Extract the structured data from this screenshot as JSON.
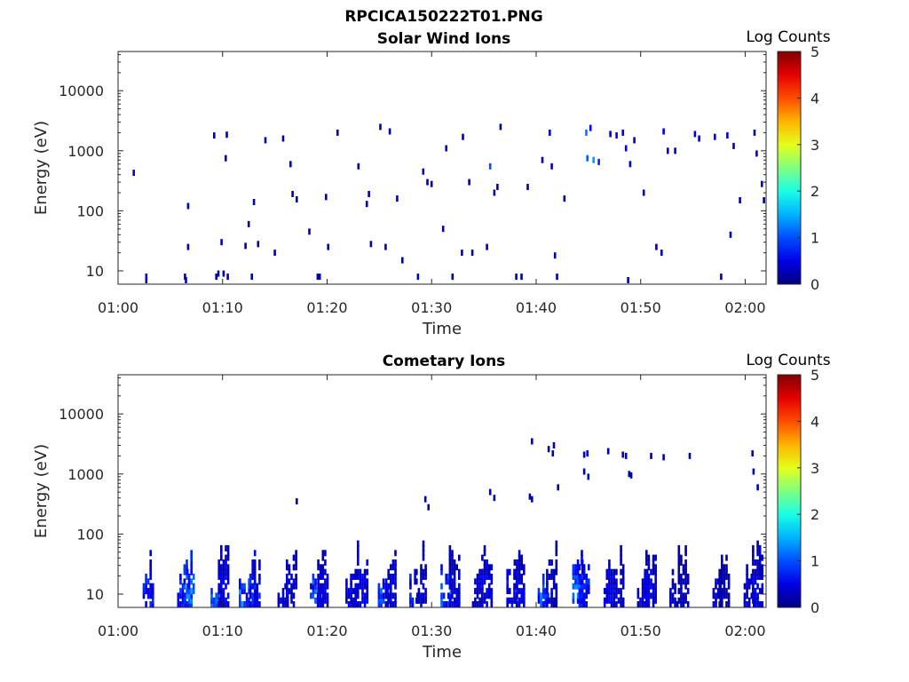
{
  "figure_title": "RPCICA150222T01.PNG",
  "chart_data": [
    {
      "type": "heatmap",
      "title": "Solar Wind Ions",
      "xlabel": "Time",
      "ylabel": "Energy (eV)",
      "x_ticks": [
        "01:00",
        "01:10",
        "01:20",
        "01:30",
        "01:40",
        "01:50",
        "02:00"
      ],
      "x_tick_minutes": [
        0,
        10,
        20,
        30,
        40,
        50,
        60
      ],
      "xlim_minutes": [
        0,
        62
      ],
      "y_scale": "log",
      "ylim": [
        6,
        45000
      ],
      "y_ticks": [
        "10",
        "100",
        "1000",
        "10000"
      ],
      "y_tick_values": [
        10,
        100,
        1000,
        10000
      ],
      "colorbar": {
        "label": "Log Counts",
        "range": [
          0,
          5
        ],
        "ticks": [
          "0",
          "1",
          "2",
          "3",
          "4",
          "5"
        ],
        "colormap": "jet"
      },
      "cells": [
        [
          1.5,
          430,
          0.5
        ],
        [
          2.7,
          8,
          0.3
        ],
        [
          2.7,
          7,
          0.3
        ],
        [
          6.4,
          8,
          0.3
        ],
        [
          6.5,
          7,
          0.3
        ],
        [
          6.7,
          25,
          0.2
        ],
        [
          6.7,
          120,
          0.3
        ],
        [
          9.2,
          1800,
          0.2
        ],
        [
          9.4,
          8,
          0.2
        ],
        [
          9.6,
          9,
          0.2
        ],
        [
          9.9,
          30,
          0.3
        ],
        [
          10.1,
          9,
          0.2
        ],
        [
          10.4,
          1850,
          0.2
        ],
        [
          10.5,
          8,
          0.2
        ],
        [
          10.3,
          750,
          0.2
        ],
        [
          12.2,
          26,
          0.2
        ],
        [
          12.5,
          60,
          0.2
        ],
        [
          12.8,
          8,
          0.2
        ],
        [
          13.0,
          140,
          0.3
        ],
        [
          13.4,
          28,
          0.2
        ],
        [
          14.1,
          1500,
          0.2
        ],
        [
          15.0,
          20,
          0.2
        ],
        [
          15.8,
          1600,
          0.2
        ],
        [
          16.5,
          600,
          0.2
        ],
        [
          16.7,
          190,
          0.2
        ],
        [
          17.1,
          155,
          0.2
        ],
        [
          18.3,
          45,
          0.2
        ],
        [
          19.1,
          8,
          0.2
        ],
        [
          19.3,
          8,
          0.2
        ],
        [
          19.9,
          170,
          0.2
        ],
        [
          20.1,
          25,
          0.2
        ],
        [
          21.0,
          2000,
          0.2
        ],
        [
          23.0,
          550,
          0.2
        ],
        [
          23.8,
          130,
          0.2
        ],
        [
          24.0,
          190,
          0.2
        ],
        [
          24.2,
          28,
          0.2
        ],
        [
          25.1,
          2500,
          0.2
        ],
        [
          25.6,
          25,
          0.2
        ],
        [
          26.0,
          2100,
          0.2
        ],
        [
          26.7,
          160,
          0.2
        ],
        [
          27.2,
          15,
          0.2
        ],
        [
          28.7,
          8,
          0.2
        ],
        [
          29.2,
          450,
          0.2
        ],
        [
          29.6,
          300,
          0.2
        ],
        [
          30.0,
          280,
          0.2
        ],
        [
          31.1,
          50,
          0.2
        ],
        [
          31.4,
          1100,
          0.2
        ],
        [
          32.0,
          8,
          0.2
        ],
        [
          32.9,
          20,
          0.2
        ],
        [
          33.0,
          1700,
          0.2
        ],
        [
          33.6,
          300,
          0.2
        ],
        [
          33.9,
          20,
          0.2
        ],
        [
          35.3,
          25,
          0.2
        ],
        [
          35.6,
          550,
          1.0
        ],
        [
          36.0,
          200,
          0.2
        ],
        [
          36.3,
          250,
          0.2
        ],
        [
          36.6,
          2500,
          0.2
        ],
        [
          38.1,
          8,
          0.2
        ],
        [
          38.6,
          8,
          0.2
        ],
        [
          39.2,
          250,
          0.2
        ],
        [
          40.6,
          700,
          0.2
        ],
        [
          41.3,
          2000,
          0.3
        ],
        [
          41.5,
          550,
          0.4
        ],
        [
          41.8,
          18,
          0.2
        ],
        [
          42.0,
          8,
          0.2
        ],
        [
          42.7,
          160,
          0.2
        ],
        [
          44.8,
          2000,
          1.2
        ],
        [
          44.9,
          750,
          1.1
        ],
        [
          45.2,
          2400,
          0.6
        ],
        [
          45.5,
          700,
          1.4
        ],
        [
          46.0,
          650,
          0.8
        ],
        [
          47.1,
          1900,
          0.4
        ],
        [
          47.7,
          1800,
          0.6
        ],
        [
          48.3,
          2000,
          0.5
        ],
        [
          48.6,
          1100,
          0.5
        ],
        [
          48.8,
          7,
          0.2
        ],
        [
          49.0,
          600,
          0.4
        ],
        [
          49.4,
          1500,
          0.3
        ],
        [
          50.3,
          200,
          0.2
        ],
        [
          51.5,
          25,
          0.2
        ],
        [
          52.0,
          20,
          0.2
        ],
        [
          52.2,
          2100,
          0.5
        ],
        [
          52.6,
          1000,
          0.3
        ],
        [
          53.3,
          1000,
          0.2
        ],
        [
          55.2,
          1900,
          0.5
        ],
        [
          55.6,
          1600,
          0.4
        ],
        [
          57.1,
          1700,
          0.3
        ],
        [
          57.7,
          8,
          0.2
        ],
        [
          58.3,
          1800,
          0.4
        ],
        [
          58.6,
          40,
          0.2
        ],
        [
          58.9,
          1200,
          0.3
        ],
        [
          59.5,
          150,
          0.2
        ],
        [
          60.9,
          2000,
          0.4
        ],
        [
          61.1,
          900,
          0.3
        ],
        [
          61.6,
          280,
          0.2
        ],
        [
          61.8,
          150,
          0.2
        ]
      ]
    },
    {
      "type": "heatmap",
      "title": "Cometary Ions",
      "xlabel": "Time",
      "ylabel": "Energy (eV)",
      "x_ticks": [
        "01:00",
        "01:10",
        "01:20",
        "01:30",
        "01:40",
        "01:50",
        "02:00"
      ],
      "x_tick_minutes": [
        0,
        10,
        20,
        30,
        40,
        50,
        60
      ],
      "xlim_minutes": [
        0,
        62
      ],
      "y_scale": "log",
      "ylim": [
        6,
        45000
      ],
      "y_ticks": [
        "10",
        "100",
        "1000",
        "10000"
      ],
      "y_tick_values": [
        10,
        100,
        1000,
        10000
      ],
      "colorbar": {
        "label": "Log Counts",
        "range": [
          0,
          5
        ],
        "ticks": [
          "0",
          "1",
          "2",
          "3",
          "4",
          "5"
        ],
        "colormap": "jet"
      },
      "bursts": [
        [
          2.9,
          22,
          0.9
        ],
        [
          6.2,
          15,
          1.0
        ],
        [
          6.8,
          30,
          1.4
        ],
        [
          9.4,
          12,
          1.2
        ],
        [
          10.1,
          30,
          0.7
        ],
        [
          12.1,
          14,
          1.5
        ],
        [
          13.1,
          28,
          0.9
        ],
        [
          15.8,
          12,
          0.6
        ],
        [
          16.6,
          24,
          0.5
        ],
        [
          18.9,
          14,
          1.2
        ],
        [
          19.6,
          30,
          0.6
        ],
        [
          22.3,
          14,
          0.6
        ],
        [
          23.4,
          30,
          0.7
        ],
        [
          25.4,
          12,
          1.2
        ],
        [
          26.1,
          28,
          0.6
        ],
        [
          28.2,
          12,
          0.9
        ],
        [
          29.0,
          35,
          0.5
        ],
        [
          31.4,
          15,
          1.3
        ],
        [
          32.2,
          28,
          0.6
        ],
        [
          34.4,
          12,
          0.5
        ],
        [
          35.3,
          30,
          0.7
        ],
        [
          37.7,
          12,
          0.8
        ],
        [
          38.4,
          24,
          0.6
        ],
        [
          40.7,
          14,
          1.3
        ],
        [
          41.5,
          30,
          0.5
        ],
        [
          44.0,
          18,
          1.3
        ],
        [
          44.6,
          28,
          0.9
        ],
        [
          47.0,
          14,
          0.7
        ],
        [
          47.9,
          30,
          0.5
        ],
        [
          50.2,
          12,
          0.6
        ],
        [
          51.0,
          30,
          0.7
        ],
        [
          53.3,
          12,
          0.5
        ],
        [
          54.1,
          28,
          0.4
        ],
        [
          57.2,
          12,
          0.5
        ],
        [
          58.0,
          30,
          0.3
        ],
        [
          60.4,
          14,
          0.5
        ],
        [
          61.2,
          40,
          0.6
        ]
      ],
      "cells": [
        [
          39.6,
          3500,
          0.2
        ],
        [
          41.2,
          2600,
          0.2
        ],
        [
          41.6,
          2200,
          0.2
        ],
        [
          41.7,
          3000,
          0.2
        ],
        [
          44.6,
          2100,
          0.5
        ],
        [
          44.9,
          2200,
          0.5
        ],
        [
          46.9,
          2400,
          0.2
        ],
        [
          48.3,
          2100,
          0.3
        ],
        [
          48.6,
          2000,
          0.3
        ],
        [
          51.0,
          2000,
          0.2
        ],
        [
          52.2,
          1900,
          0.2
        ],
        [
          54.7,
          2000,
          0.2
        ],
        [
          60.7,
          2200,
          0.3
        ],
        [
          44.6,
          1100,
          0.3
        ],
        [
          45.0,
          900,
          0.3
        ],
        [
          48.9,
          1000,
          0.2
        ],
        [
          49.1,
          950,
          0.2
        ],
        [
          60.8,
          1100,
          0.3
        ],
        [
          61.2,
          600,
          0.3
        ],
        [
          35.6,
          500,
          0.2
        ],
        [
          36.0,
          400,
          0.2
        ],
        [
          39.4,
          420,
          0.2
        ],
        [
          39.6,
          380,
          0.2
        ],
        [
          42.1,
          600,
          0.2
        ],
        [
          17.1,
          350,
          0.2
        ],
        [
          29.4,
          380,
          0.2
        ],
        [
          29.7,
          280,
          0.2
        ]
      ]
    }
  ]
}
